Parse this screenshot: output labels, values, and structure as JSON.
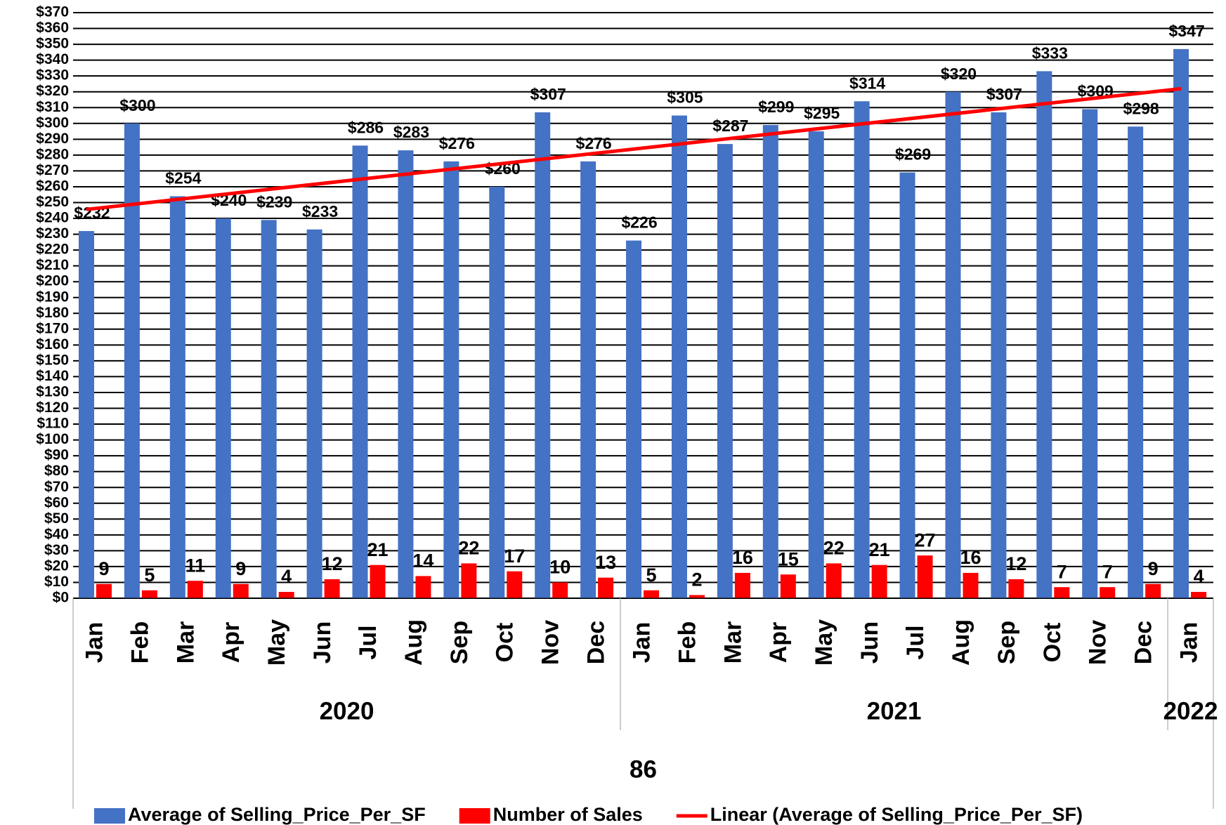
{
  "chart_data": {
    "type": "bar",
    "outer_category": "86",
    "groups": [
      {
        "name": "2020",
        "categories": [
          "Jan",
          "Feb",
          "Mar",
          "Apr",
          "May",
          "Jun",
          "Jul",
          "Aug",
          "Sep",
          "Oct",
          "Nov",
          "Dec"
        ]
      },
      {
        "name": "2021",
        "categories": [
          "Jan",
          "Feb",
          "Mar",
          "Apr",
          "May",
          "Jun",
          "Jul",
          "Aug",
          "Sep",
          "Oct",
          "Nov",
          "Dec"
        ]
      },
      {
        "name": "2022",
        "categories": [
          "Jan"
        ]
      }
    ],
    "series": [
      {
        "name": "Average of Selling_Price_Per_SF",
        "color": "#4472c4",
        "values": [
          232,
          300,
          254,
          240,
          239,
          233,
          286,
          283,
          276,
          260,
          307,
          276,
          226,
          305,
          287,
          299,
          295,
          314,
          269,
          320,
          307,
          333,
          309,
          298,
          347
        ],
        "value_labels": [
          "$232",
          "$300",
          "$254",
          "$240",
          "$239",
          "$233",
          "$286",
          "$283",
          "$276",
          "$260",
          "$307",
          "$276",
          "$226",
          "$305",
          "$287",
          "$299",
          "$295",
          "$314",
          "$269",
          "$320",
          "$307",
          "$333",
          "$309",
          "$298",
          "$347"
        ]
      },
      {
        "name": "Number of Sales",
        "color": "#ff0000",
        "values": [
          9,
          5,
          11,
          9,
          4,
          12,
          21,
          14,
          22,
          17,
          10,
          13,
          5,
          2,
          16,
          15,
          22,
          21,
          27,
          16,
          12,
          7,
          7,
          9,
          4
        ]
      }
    ],
    "trendline": {
      "name": "Linear (Average of Selling_Price_Per_SF)",
      "color": "#ff0000",
      "fit": "linear"
    },
    "ylim": [
      0,
      370
    ],
    "yticks": [
      {
        "value": 0,
        "label": "$0"
      },
      {
        "value": 10,
        "label": "$10"
      },
      {
        "value": 20,
        "label": "$20"
      },
      {
        "value": 30,
        "label": "$30"
      },
      {
        "value": 40,
        "label": "$40"
      },
      {
        "value": 50,
        "label": "$50"
      },
      {
        "value": 60,
        "label": "$60"
      },
      {
        "value": 70,
        "label": "$70"
      },
      {
        "value": 80,
        "label": "$80"
      },
      {
        "value": 90,
        "label": "$90"
      },
      {
        "value": 100,
        "label": "$100"
      },
      {
        "value": 110,
        "label": "$110"
      },
      {
        "value": 120,
        "label": "$120"
      },
      {
        "value": 130,
        "label": "$130"
      },
      {
        "value": 140,
        "label": "$140"
      },
      {
        "value": 150,
        "label": "$150"
      },
      {
        "value": 160,
        "label": "$160"
      },
      {
        "value": 170,
        "label": "$170"
      },
      {
        "value": 180,
        "label": "$180"
      },
      {
        "value": 190,
        "label": "$190"
      },
      {
        "value": 200,
        "label": "$200"
      },
      {
        "value": 210,
        "label": "$210"
      },
      {
        "value": 220,
        "label": "$220"
      },
      {
        "value": 230,
        "label": "$230"
      },
      {
        "value": 240,
        "label": "$240"
      },
      {
        "value": 250,
        "label": "$250"
      },
      {
        "value": 260,
        "label": "$260"
      },
      {
        "value": 270,
        "label": "$270"
      },
      {
        "value": 280,
        "label": "$280"
      },
      {
        "value": 290,
        "label": "$290"
      },
      {
        "value": 300,
        "label": "$300"
      },
      {
        "value": 310,
        "label": "$310"
      },
      {
        "value": 320,
        "label": "$320"
      },
      {
        "value": 330,
        "label": "$330"
      },
      {
        "value": 340,
        "label": "$340"
      },
      {
        "value": 350,
        "label": "$350"
      },
      {
        "value": 360,
        "label": "$360"
      },
      {
        "value": 370,
        "label": "$370"
      }
    ],
    "grid": true,
    "legend": "bottom"
  }
}
